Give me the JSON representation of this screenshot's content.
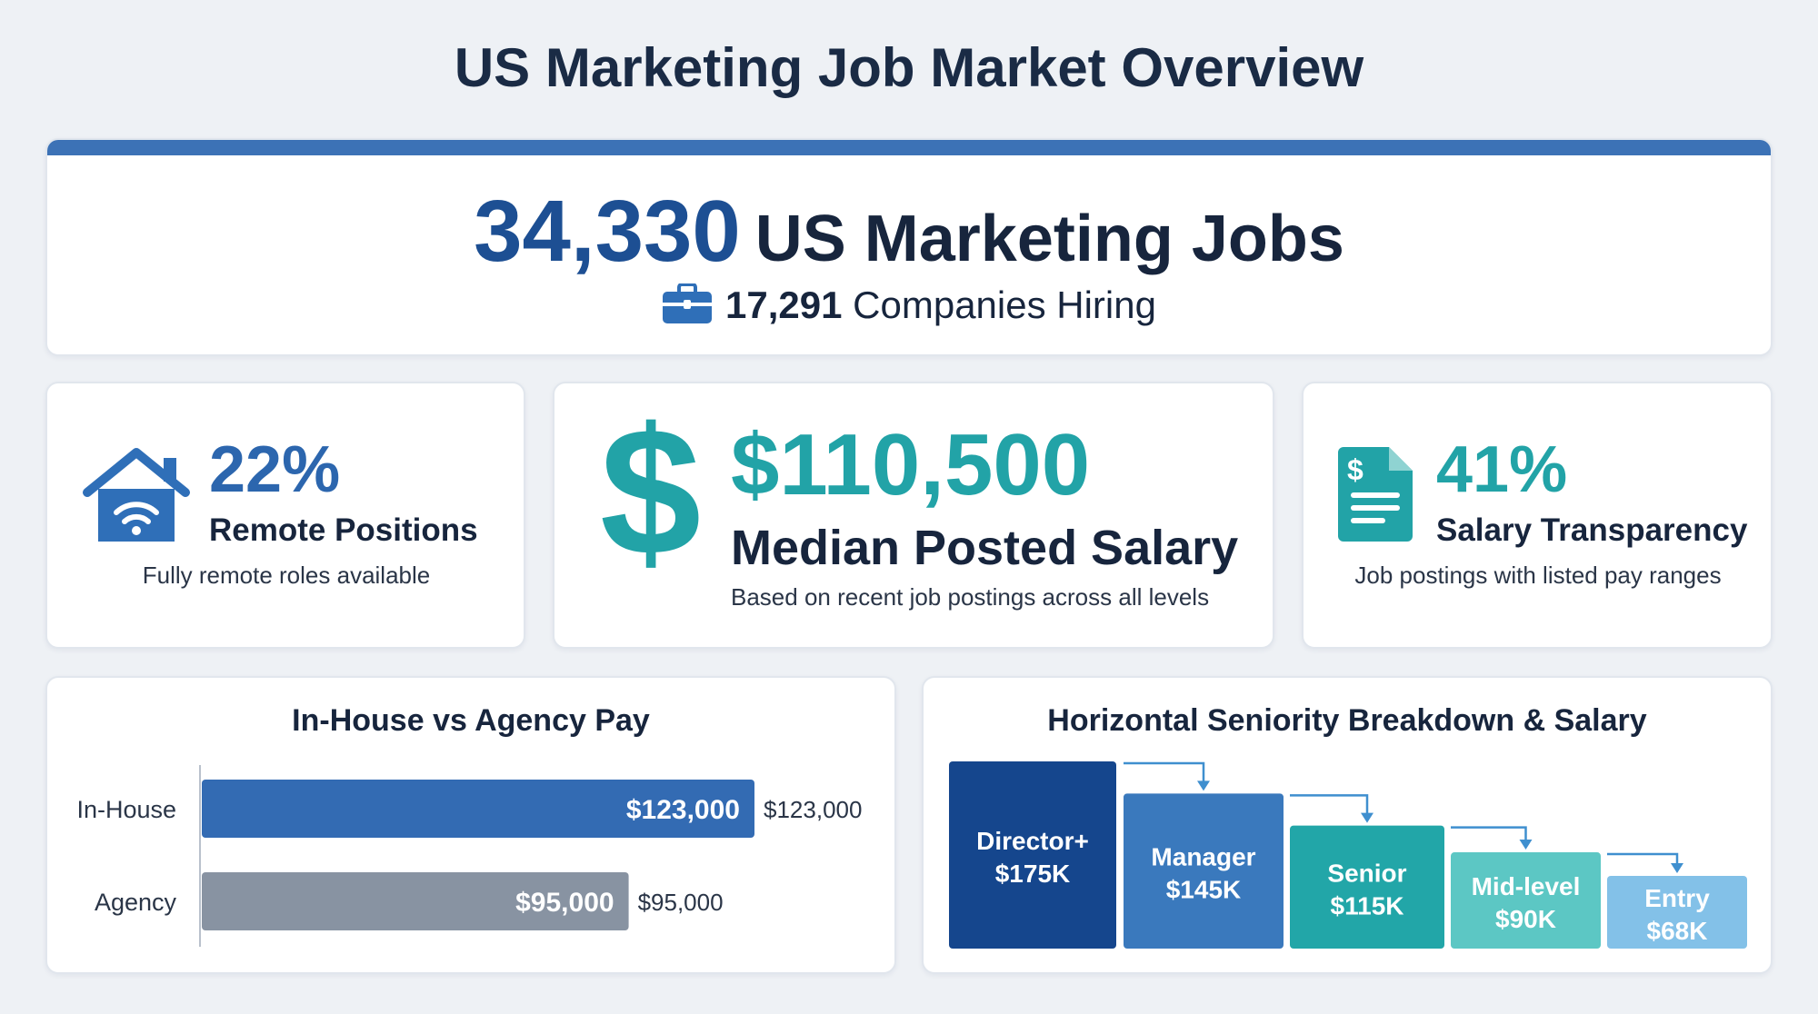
{
  "page": {
    "title": "US Marketing Job Market Overview"
  },
  "hero": {
    "job_count": "34,330",
    "job_label": "US Marketing Jobs",
    "companies_count": "17,291",
    "companies_label": "Companies Hiring",
    "icon": "briefcase-icon",
    "accent_color": "#3c72b6"
  },
  "stats": {
    "remote": {
      "value": "22%",
      "label": "Remote Positions",
      "description": "Fully remote roles available",
      "icon": "house-wifi-icon",
      "color": "#2c66ae"
    },
    "salary": {
      "value": "$110,500",
      "label": "Median Posted Salary",
      "description": "Based on recent job postings across all levels",
      "icon": "dollar-icon",
      "color": "#22a3a7"
    },
    "transparency": {
      "value": "41%",
      "label": "Salary Transparency",
      "description": "Job postings with listed pay ranges",
      "icon": "document-dollar-icon",
      "color": "#22a3a7"
    }
  },
  "chart_data": [
    {
      "type": "bar",
      "orientation": "horizontal",
      "title": "In-House vs Agency Pay",
      "categories": [
        "In-House",
        "Agency"
      ],
      "values": [
        123000,
        95000
      ],
      "value_labels": [
        "$123,000",
        "$95,000"
      ],
      "colors": [
        "#336bb3",
        "#8893a2"
      ],
      "xlim": [
        0,
        150000
      ],
      "grid": false,
      "legend": "none"
    },
    {
      "type": "bar",
      "title": "Horizontal Seniority Breakdown & Salary",
      "categories": [
        "Director+",
        "Manager",
        "Senior",
        "Mid-level",
        "Entry"
      ],
      "values": [
        175000,
        145000,
        115000,
        90000,
        68000
      ],
      "value_labels": [
        "$175K",
        "$145K",
        "$115K",
        "$90K",
        "$68K"
      ],
      "colors": [
        "#15468d",
        "#3a79bd",
        "#22a6a8",
        "#5cc7c4",
        "#83c1e8"
      ],
      "ylim": [
        0,
        175000
      ],
      "grid": false,
      "legend": "none"
    }
  ]
}
